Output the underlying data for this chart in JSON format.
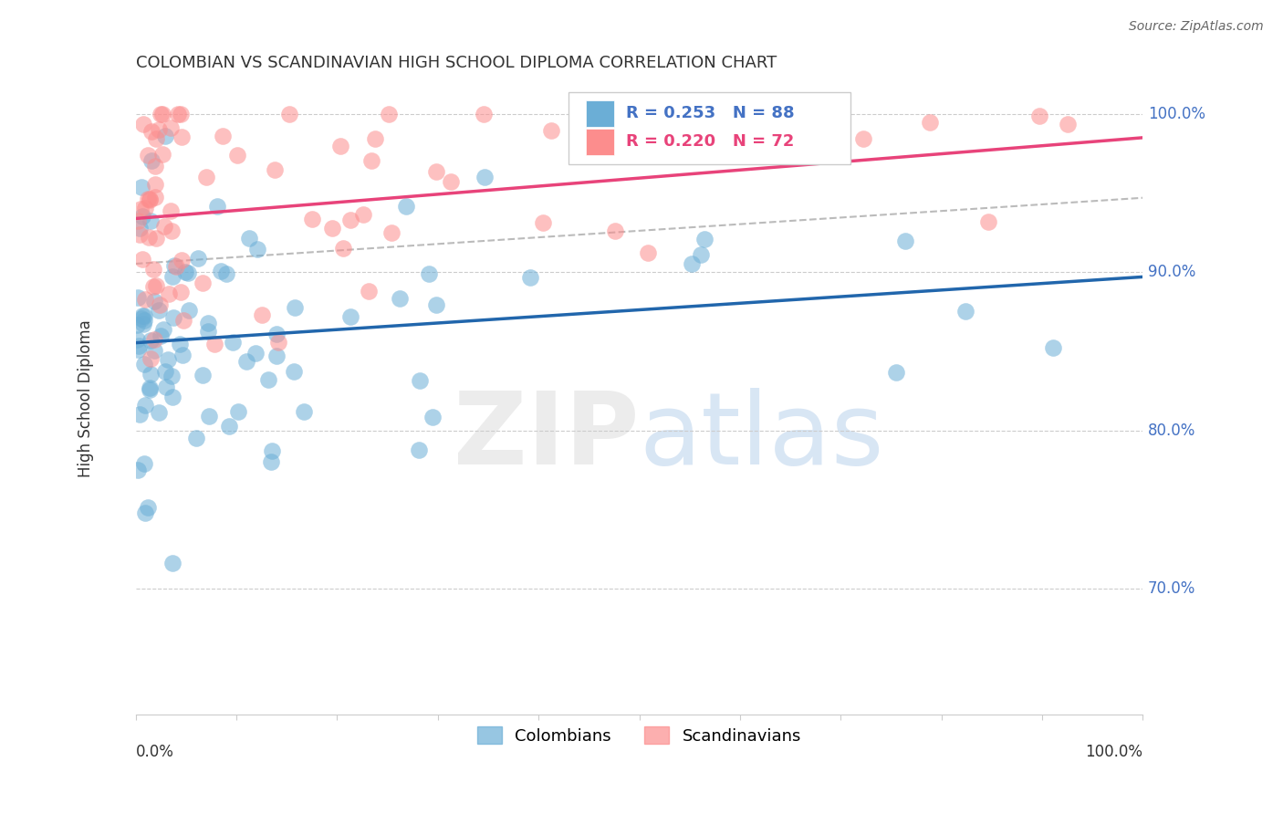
{
  "title": "COLOMBIAN VS SCANDINAVIAN HIGH SCHOOL DIPLOMA CORRELATION CHART",
  "source": "Source: ZipAtlas.com",
  "ylabel": "High School Diploma",
  "ytick_labels": [
    "100.0%",
    "90.0%",
    "80.0%",
    "70.0%"
  ],
  "ytick_values": [
    1.0,
    0.9,
    0.8,
    0.7
  ],
  "xlim": [
    0.0,
    1.0
  ],
  "ylim": [
    0.62,
    1.02
  ],
  "legend_colombians": "Colombians",
  "legend_scandinavians": "Scandinavians",
  "R_colombians": 0.253,
  "N_colombians": 88,
  "R_scandinavians": 0.22,
  "N_scandinavians": 72,
  "color_colombians": "#6baed6",
  "color_scandinavians": "#fc8d8d",
  "trendline_color_colombians": "#2166ac",
  "trendline_color_scandinavians": "#e8437a",
  "dashed_line_color": "#aaaaaa",
  "background_color": "#ffffff",
  "title_fontsize": 13,
  "source_fontsize": 10,
  "ylabel_fontsize": 12,
  "tick_label_fontsize": 12,
  "legend_fontsize": 13,
  "watermark_zip_color": "#e0e0e0",
  "watermark_atlas_color": "#aac8e8"
}
